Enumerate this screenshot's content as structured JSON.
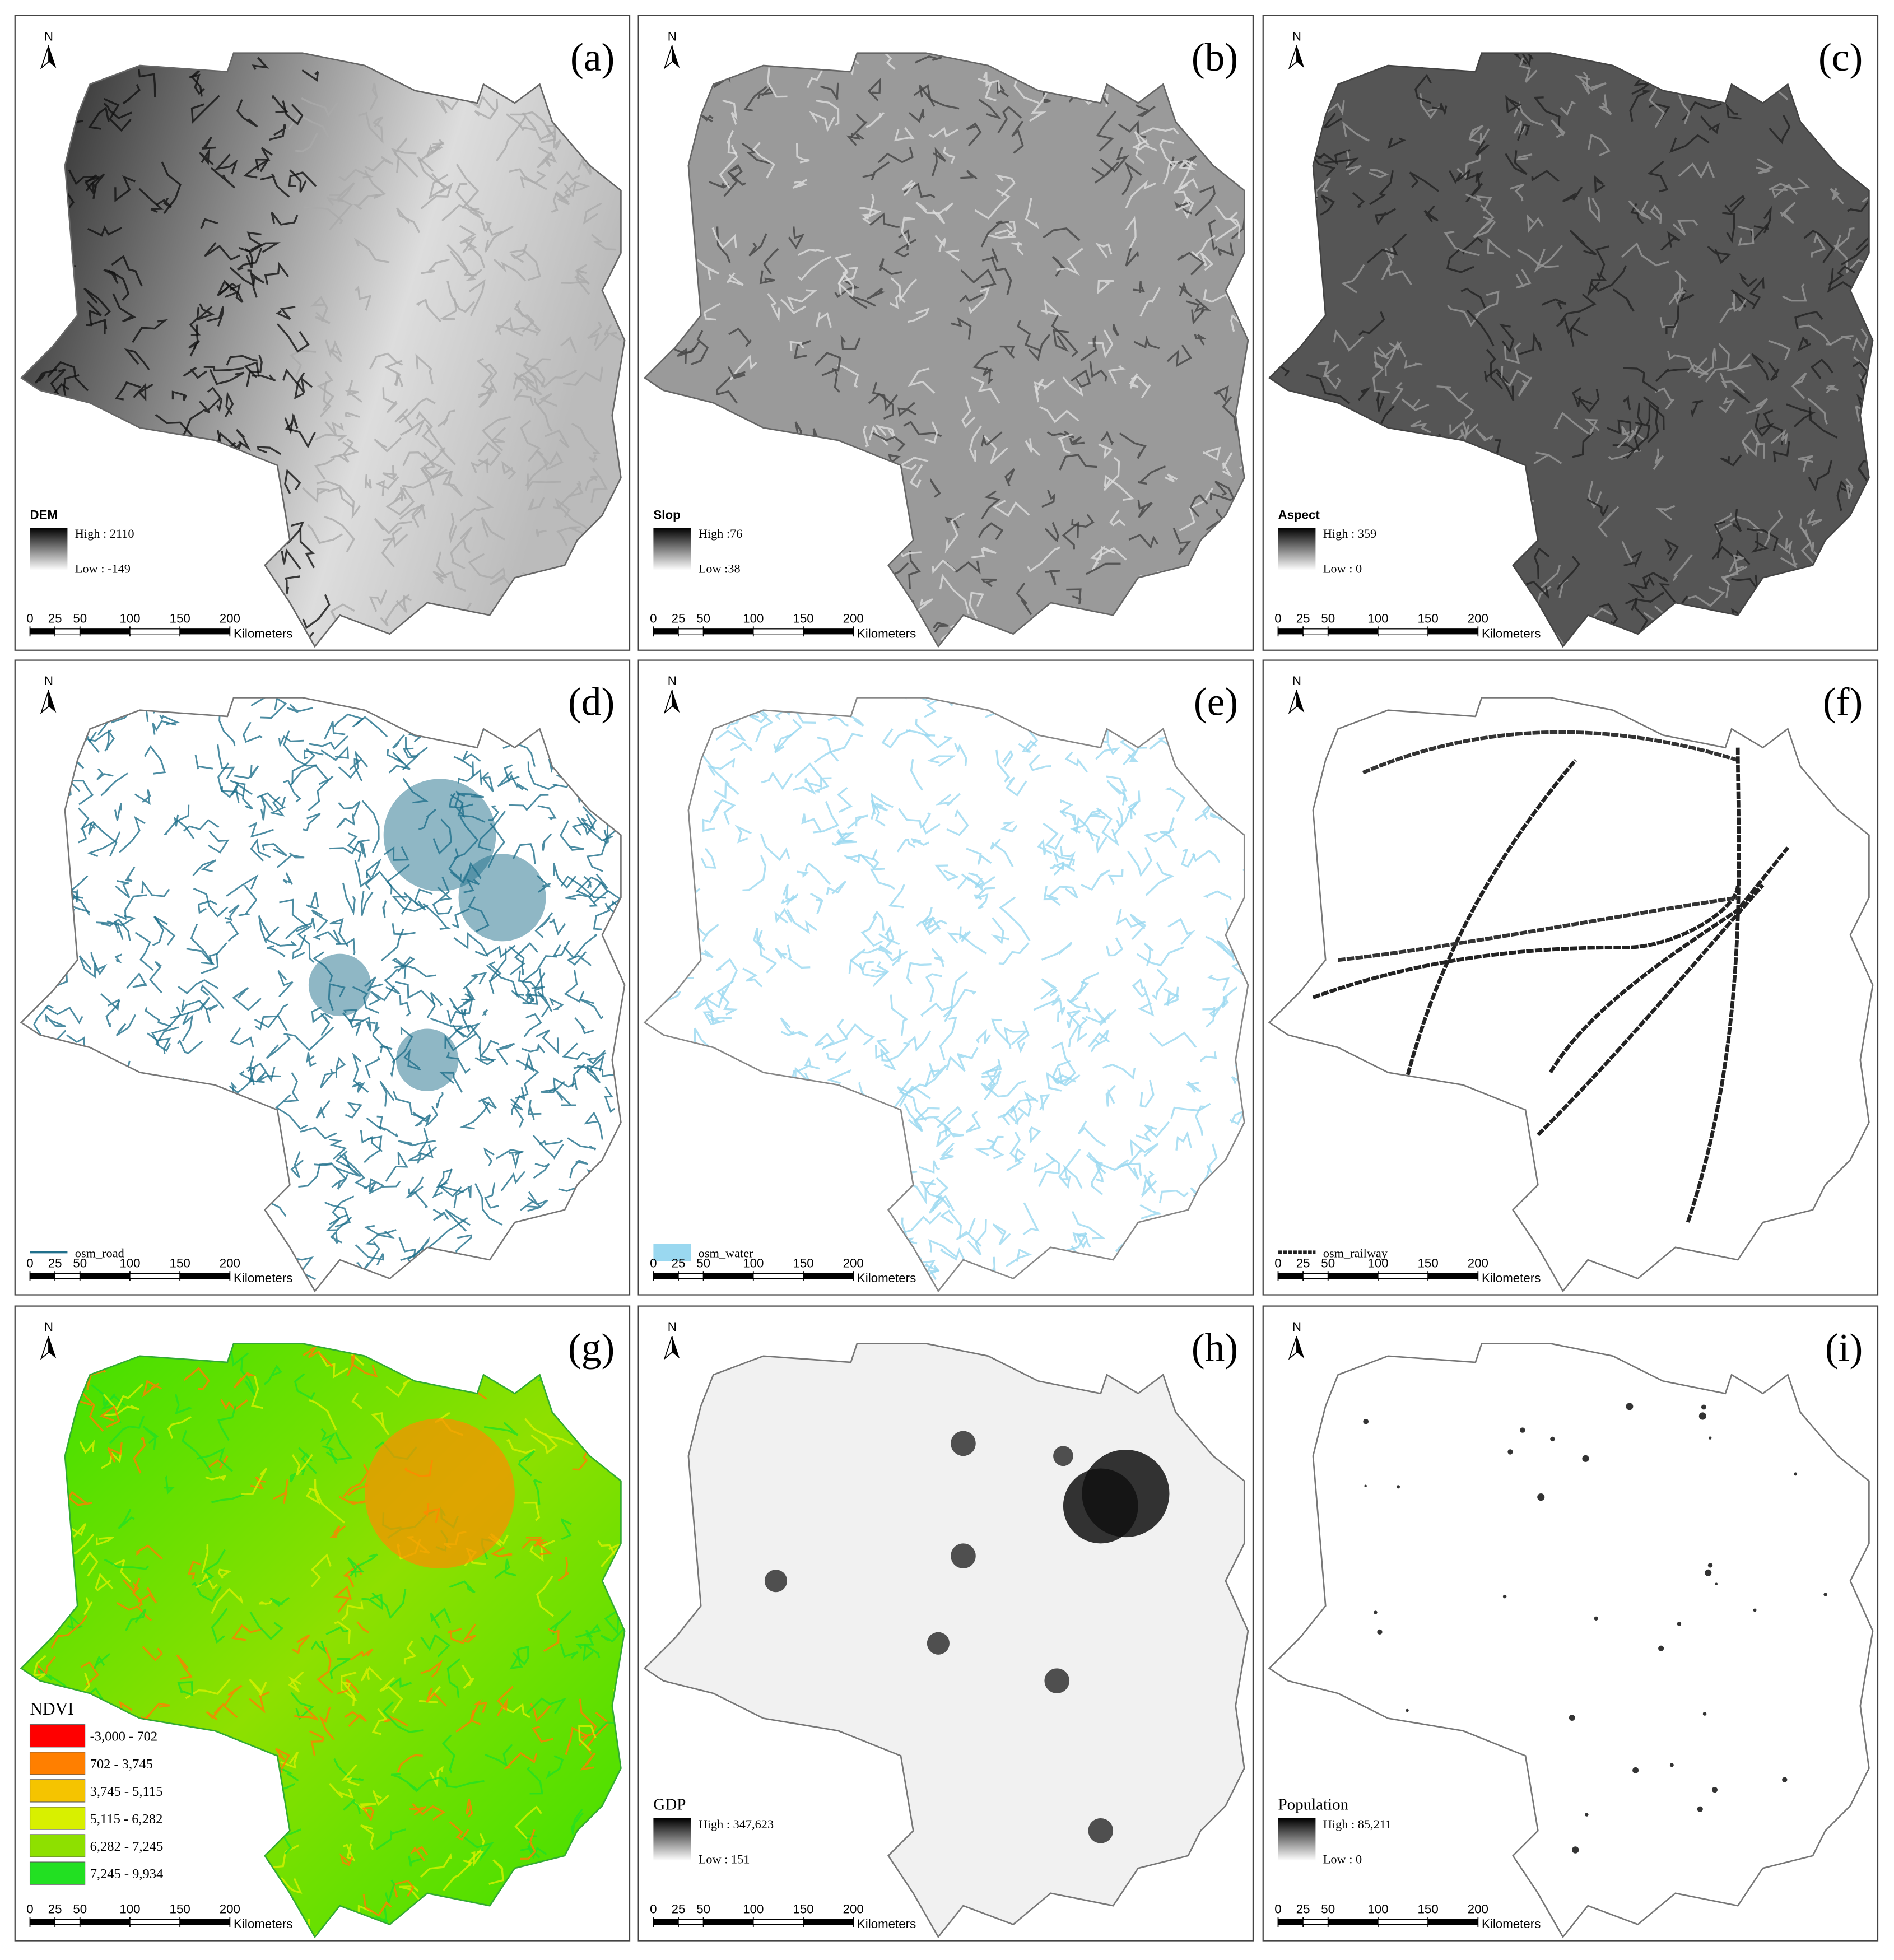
{
  "north_label": "N",
  "scale_bar": {
    "ticks": [
      0,
      25,
      50,
      100,
      150,
      200
    ],
    "unit": "Kilometers"
  },
  "panels": [
    {
      "label": "(a)",
      "legend": {
        "title": "DEM",
        "high": "High : 2110",
        "low": "Low : -149"
      }
    },
    {
      "label": "(b)",
      "legend": {
        "title": "Slop",
        "high": "High :76",
        "low": "Low :38"
      }
    },
    {
      "label": "(c)",
      "legend": {
        "title": "Aspect",
        "high": "High : 359",
        "low": "Low : 0"
      }
    },
    {
      "label": "(d)",
      "legend": {
        "item": "osm_road",
        "color": "#1f6f8b"
      }
    },
    {
      "label": "(e)",
      "legend": {
        "item": "osm_water",
        "color": "#9ad8f0"
      }
    },
    {
      "label": "(f)",
      "legend": {
        "item": "osm_railway",
        "color": "#222222"
      }
    },
    {
      "label": "(g)",
      "legend": {
        "title": "NDVI",
        "classes": [
          {
            "label": "-3,000 - 702",
            "color": "#ff0000"
          },
          {
            "label": "702 - 3,745",
            "color": "#ff7f00"
          },
          {
            "label": "3,745 - 5,115",
            "color": "#f5c400"
          },
          {
            "label": "5,115 - 6,282",
            "color": "#d8f000"
          },
          {
            "label": "6,282 - 7,245",
            "color": "#8ee000"
          },
          {
            "label": "7,245 - 9,934",
            "color": "#22e022"
          }
        ]
      }
    },
    {
      "label": "(h)",
      "legend": {
        "title": "GDP",
        "high": "High : 347,623",
        "low": "Low : 151"
      }
    },
    {
      "label": "(i)",
      "legend": {
        "title": "Population",
        "high": "High : 85,211",
        "low": "Low : 0"
      }
    }
  ]
}
